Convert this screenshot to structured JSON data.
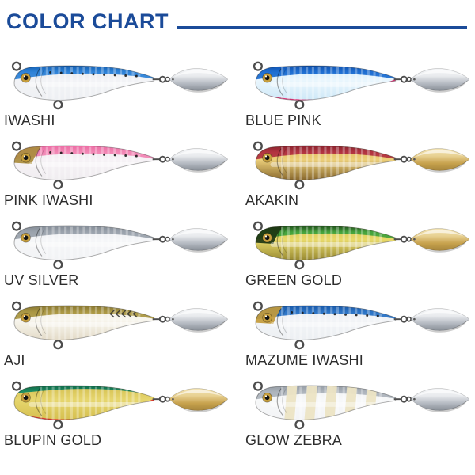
{
  "header": {
    "title": "COLOR CHART",
    "accent_color": "#1b4b99"
  },
  "labels": {
    "text_color": "#2d2d2d"
  },
  "eye_color": "#c79f3d",
  "blade_palettes": {
    "silver": [
      "#fbfcfd",
      "#e9ebee",
      "#b5bac2",
      "#696f77"
    ],
    "gold": [
      "#f8eec8",
      "#e8d192",
      "#c7a24d",
      "#8f7130"
    ]
  },
  "lures": [
    {
      "name": "IWASHI",
      "blade": "silver",
      "back": "#2f83d8",
      "back_dark": "#0c55a8",
      "side": "#d7dbe3",
      "side_hi": "#f2f3f6",
      "belly": "#eef0f3",
      "spots": true
    },
    {
      "name": "BLUE PINK",
      "blade": "silver",
      "back": "#1f6fd2",
      "back_dark": "#0a4aa6",
      "side": "#bfe2f6",
      "side_hi": "#eaf6fd",
      "belly": "#cfe9f8",
      "belly_accent": "#e4387a"
    },
    {
      "name": "PINK IWASHI",
      "blade": "silver",
      "back": "#f287b5",
      "back_dark": "#e8639d",
      "side": "#e6e0e8",
      "side_hi": "#f6f2f6",
      "belly": "#f0edf0",
      "head_top": "#a98c3c",
      "spots": true
    },
    {
      "name": "AKAKIN",
      "blade": "gold",
      "back": "#b23440",
      "back_dark": "#7c1d27",
      "side": "#d5a53f",
      "side_hi": "#eccf7a",
      "belly": "#8a6a2e"
    },
    {
      "name": "UV SILVER",
      "blade": "silver",
      "back": "#9ba3ad",
      "back_dark": "#7d858f",
      "side": "#e2e4e8",
      "side_hi": "#f5f6f8",
      "belly": "#f2f3f5"
    },
    {
      "name": "GREEN GOLD",
      "blade": "gold",
      "back": "#46a43c",
      "back_dark": "#13320f",
      "side": "#cdb53e",
      "side_hi": "#e8d96a",
      "belly": "#9a8c33",
      "head_top": "#1d3512"
    },
    {
      "name": "AJI",
      "blade": "silver",
      "back": "#ab9844",
      "back_dark": "#7c6c2c",
      "side": "#e9e5d8",
      "side_hi": "#f8f6ee",
      "belly": "#e4dcc9",
      "chevrons": true
    },
    {
      "name": "MAZUME IWASHI",
      "blade": "silver",
      "back": "#2c74c6",
      "back_dark": "#124f9e",
      "side": "#dbe0e7",
      "side_hi": "#f2f4f7",
      "belly": "#edf0f3",
      "head_top": "#c39a3a",
      "chin": "#c0392b",
      "spots": true
    },
    {
      "name": "BLUPIN GOLD",
      "blade": "gold",
      "back": "#1d8f63",
      "back_dark": "#0e5e41",
      "side": "#c9b13f",
      "side_hi": "#e6d66e",
      "belly": "#d6c050",
      "belly_accent": "#df3a31",
      "band": "thin"
    },
    {
      "name": "GLOW ZEBRA",
      "blade": "silver",
      "back": "#aeb5bd",
      "back_dark": "#8d949c",
      "side": "#e7e9ec",
      "side_hi": "#f7f8f9",
      "belly": "#f3f4f6",
      "zebra": "#ece4c4"
    }
  ]
}
